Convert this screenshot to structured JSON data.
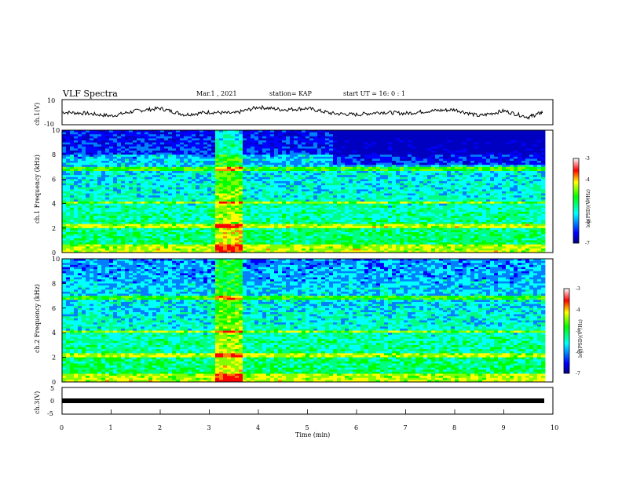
{
  "header": {
    "title": "VLF Spectra",
    "date": "Mar.1 , 2021",
    "station": "station= KAP",
    "start": "start UT =  16: 0 : 1"
  },
  "chart_data": [
    {
      "type": "line",
      "panel": "ch1-waveform",
      "ylabel": "ch.1(V)",
      "ylim": [
        -10,
        10
      ],
      "y_ticks": [
        "10",
        "-10"
      ],
      "xlim": [
        0,
        10
      ],
      "x_unit": "min",
      "description_values": "noisy waveform fluctuating roughly between -6 and 6 V",
      "x": [
        0,
        0.5,
        1,
        1.5,
        2,
        2.5,
        3,
        3.5,
        4,
        4.5,
        5,
        5.5,
        6,
        6.5,
        7,
        7.5,
        8,
        8.5,
        9,
        9.5,
        9.8
      ],
      "y": [
        0,
        -1,
        -3,
        1,
        3,
        -2,
        0,
        -1,
        4,
        2,
        3,
        -1,
        -2,
        0,
        -1,
        1,
        2,
        -3,
        1,
        -4,
        0
      ]
    },
    {
      "type": "heatmap",
      "panel": "ch1-spectrogram",
      "ylabel": "ch.1 Frequency (kHz)",
      "ylim": [
        0,
        10
      ],
      "y_ticks": [
        "0",
        "2",
        "4",
        "6",
        "8",
        "10"
      ],
      "xlim": [
        0,
        10
      ],
      "colorbar_label": "log(PSD)(V²/Hz)",
      "colorbar_range": [
        -7,
        -3
      ],
      "colorbar_ticks": [
        "-3",
        "-4",
        "-5",
        "-6",
        "-7"
      ]
    },
    {
      "type": "heatmap",
      "panel": "ch2-spectrogram",
      "ylabel": "ch.2 Frequency (kHz)",
      "ylim": [
        0,
        10
      ],
      "y_ticks": [
        "0",
        "2",
        "4",
        "6",
        "8",
        "10"
      ],
      "xlim": [
        0,
        10
      ],
      "colorbar_label": "log(PSD)(V²/Hz)",
      "colorbar_range": [
        -7,
        -3
      ],
      "colorbar_ticks": [
        "-3",
        "-4",
        "-5",
        "-6",
        "-7"
      ]
    },
    {
      "type": "line",
      "panel": "ch3-waveform",
      "ylabel": "ch.3(V)",
      "ylim": [
        -5,
        5
      ],
      "y_ticks": [
        "5",
        "0",
        "-5"
      ],
      "xlim": [
        0,
        10
      ],
      "x": [
        0,
        9.8
      ],
      "y": [
        0,
        0
      ]
    }
  ],
  "x_axis": {
    "label": "Time (min)",
    "ticks": [
      "0",
      "1",
      "2",
      "3",
      "4",
      "5",
      "6",
      "7",
      "8",
      "9",
      "10"
    ]
  }
}
